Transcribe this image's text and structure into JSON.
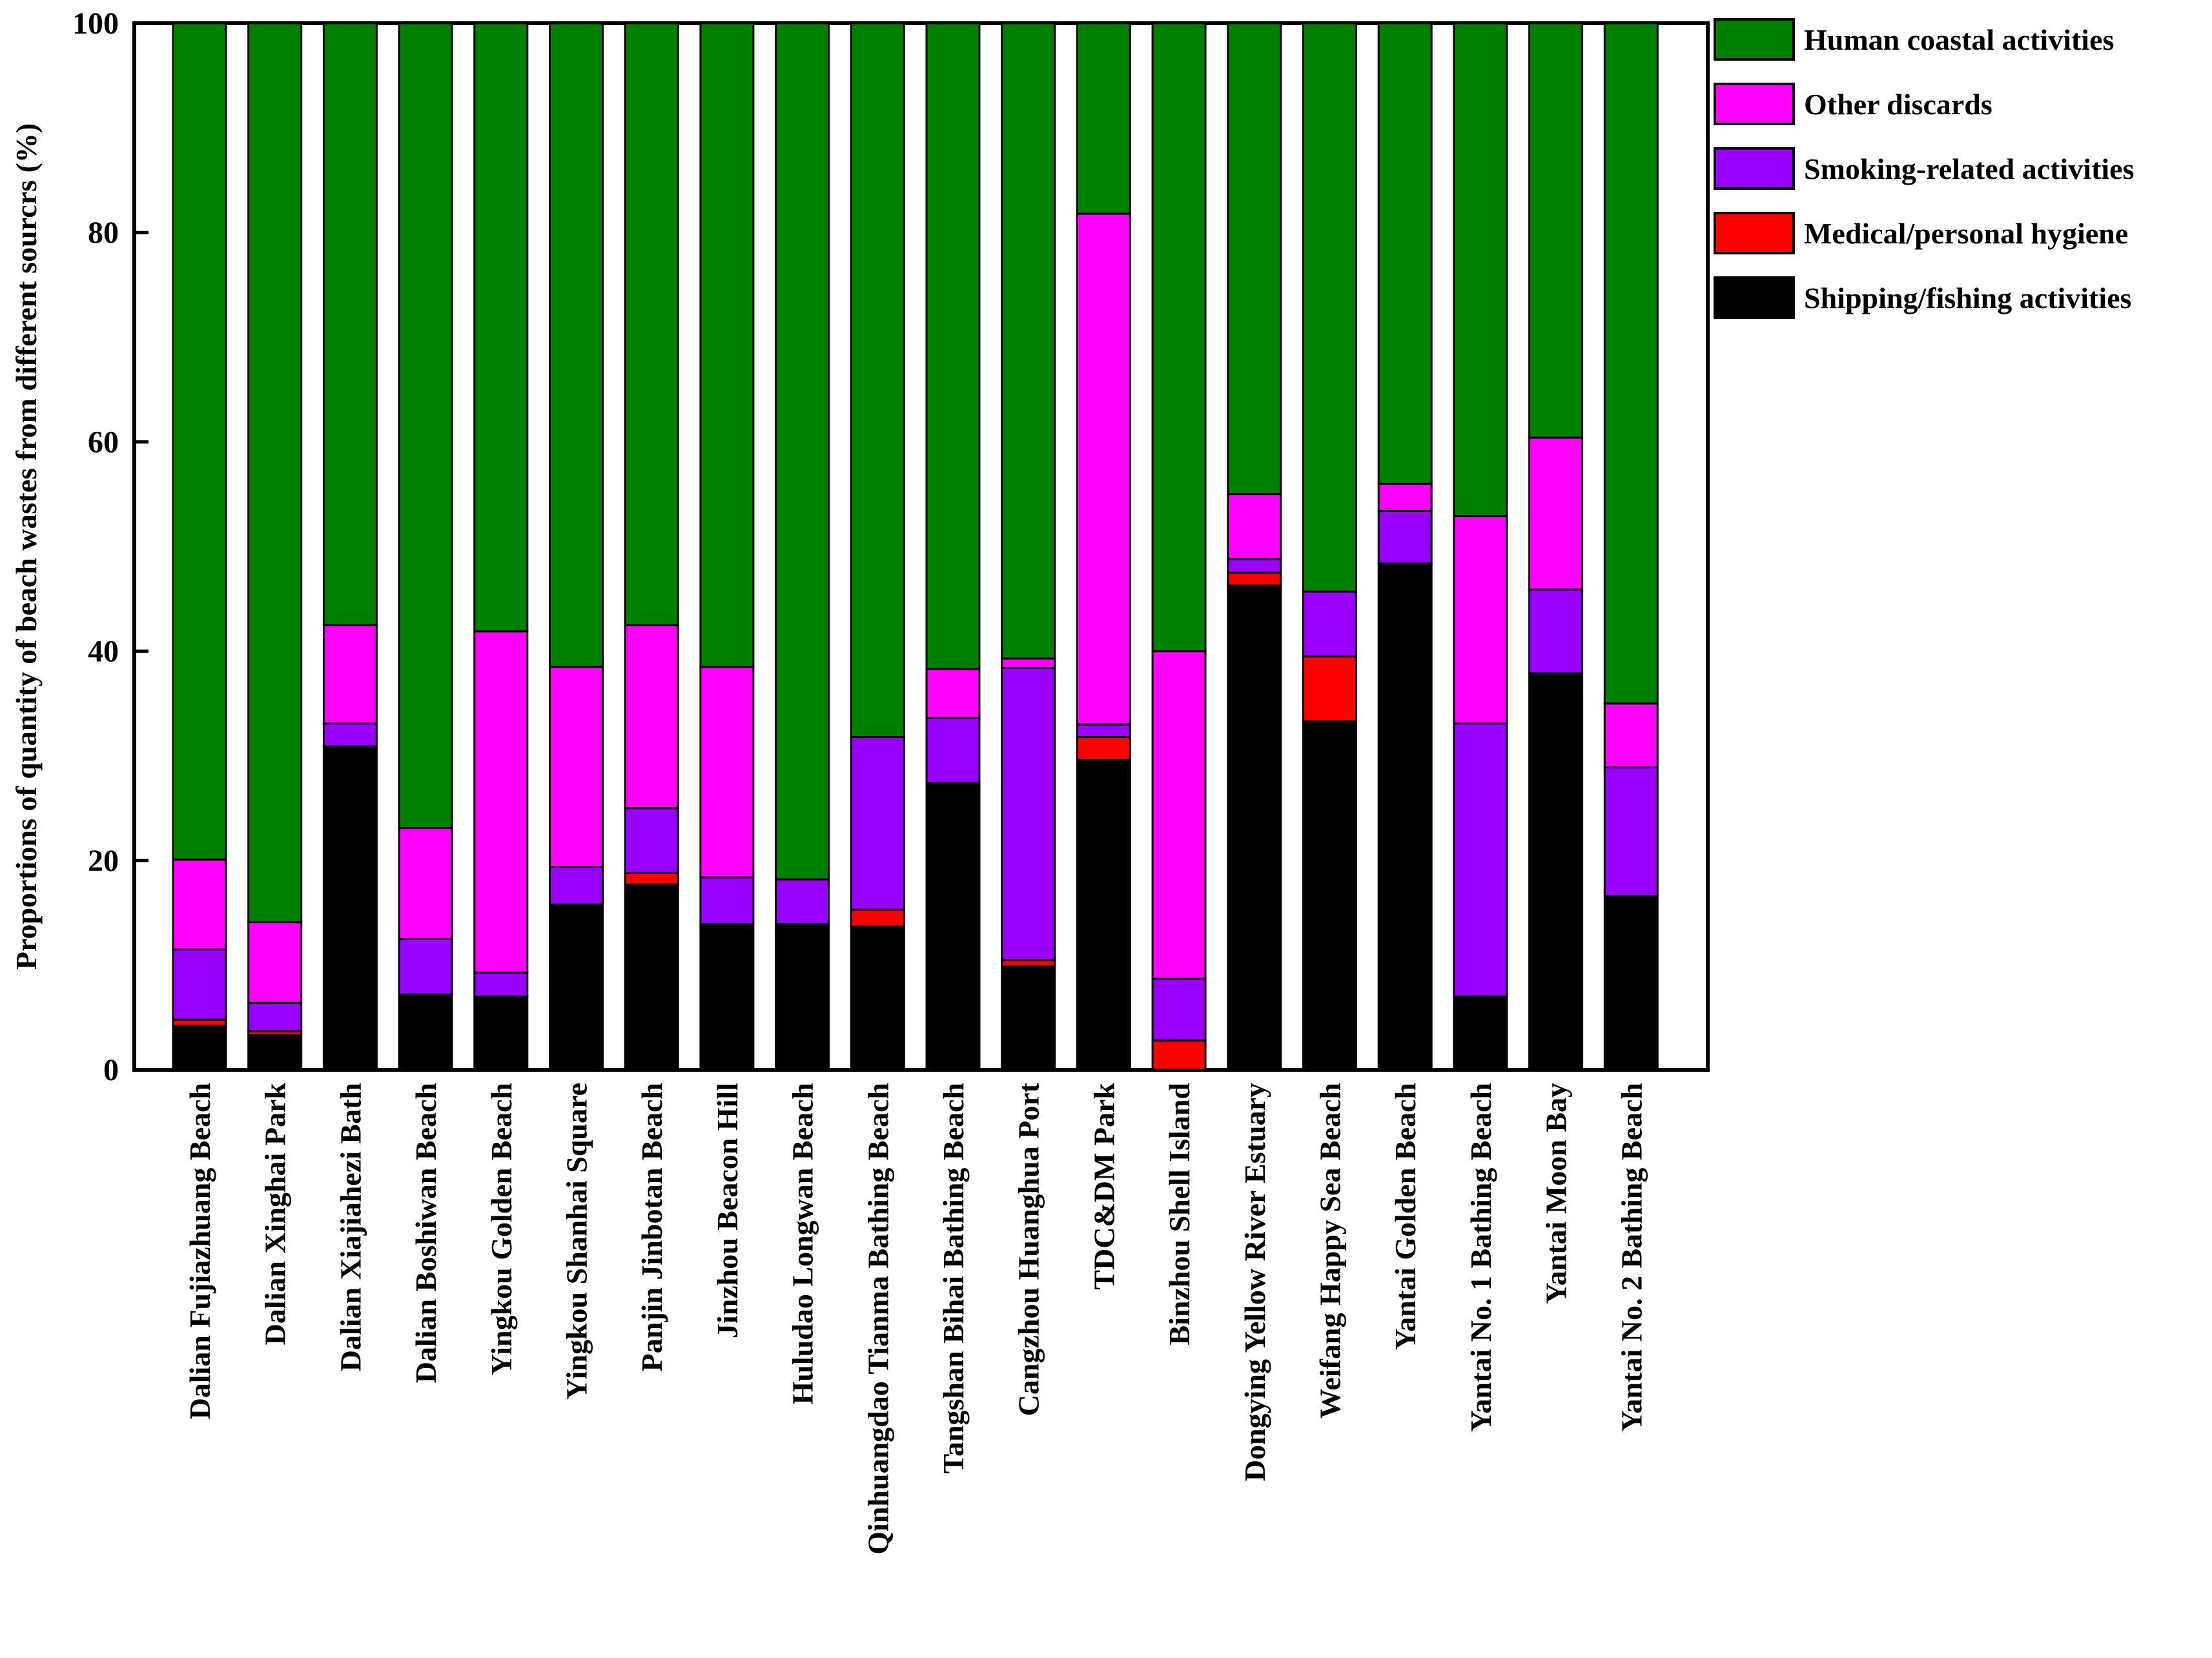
{
  "chart_data": {
    "type": "bar",
    "stacked": true,
    "title": "",
    "xlabel": "",
    "ylabel": "Proportions of quantity of beach wastes from different sourcrs (%)",
    "ylim": [
      0,
      100
    ],
    "yticks": [
      0,
      20,
      40,
      60,
      80,
      100
    ],
    "grid": false,
    "legend_position": "top-right, outside plot",
    "categories": [
      "Dalian Fujiazhuang Beach",
      "Dalian Xinghai Park",
      "Dalian Xiajiahezi Bath",
      "Dalian Boshiwan Beach",
      "Yingkou Golden Beach",
      "Yingkou Shanhai Square",
      "Panjin Jinbotan Beach",
      "Jinzhou Beacon Hill",
      "Huludao Longwan Beach",
      "Qinhuangdao Tianma Bathing Beach",
      "Tangshan Bihai Bathing Beach",
      "Cangzhou Huanghua Port",
      "TDC&DM Park",
      "Binzhou Shell Island",
      "Dongying Yellow River Estuary",
      "Weifang Happy Sea Beach",
      "Yantai Golden Beach",
      "Yantai No. 1 Bathing Beach",
      "Yantai Moon Bay",
      "Yantai No. 2 Bathing Beach"
    ],
    "series": [
      {
        "name": "Shipping/fishing activities",
        "color": "#000000",
        "values": [
          4.2,
          3.3,
          30.9,
          7.2,
          7.0,
          15.8,
          17.7,
          13.9,
          13.9,
          13.7,
          27.4,
          9.9,
          29.6,
          0.0,
          46.3,
          33.3,
          48.4,
          7.0,
          37.9,
          16.6
        ]
      },
      {
        "name": "Medical/personal hygiene",
        "color": "#ff0000",
        "values": [
          0.6,
          0.4,
          0.0,
          0.0,
          0.0,
          0.0,
          1.1,
          0.0,
          0.0,
          1.6,
          0.0,
          0.6,
          2.2,
          2.8,
          1.2,
          6.2,
          0.0,
          0.0,
          0.0,
          0.0
        ]
      },
      {
        "name": "Smoking-related activities",
        "color": "#9900ff",
        "values": [
          6.7,
          2.7,
          2.2,
          5.3,
          2.3,
          3.6,
          6.2,
          4.5,
          4.3,
          16.5,
          6.2,
          27.9,
          1.2,
          5.9,
          1.3,
          6.2,
          5.0,
          26.1,
          8.0,
          12.3
        ]
      },
      {
        "name": "Other discards",
        "color": "#ff00ff",
        "values": [
          8.6,
          7.7,
          9.4,
          10.6,
          32.6,
          19.1,
          17.5,
          20.1,
          0.0,
          0.0,
          4.7,
          0.9,
          48.8,
          31.3,
          6.2,
          0.0,
          2.6,
          19.8,
          14.5,
          6.1
        ]
      },
      {
        "name": "Human coastal activities",
        "color": "#008000",
        "values": [
          79.9,
          85.9,
          57.5,
          76.9,
          58.1,
          61.5,
          57.5,
          61.5,
          81.8,
          68.2,
          61.7,
          60.7,
          18.2,
          60.0,
          45.0,
          54.3,
          44.0,
          47.1,
          39.6,
          65.0
        ]
      }
    ]
  }
}
